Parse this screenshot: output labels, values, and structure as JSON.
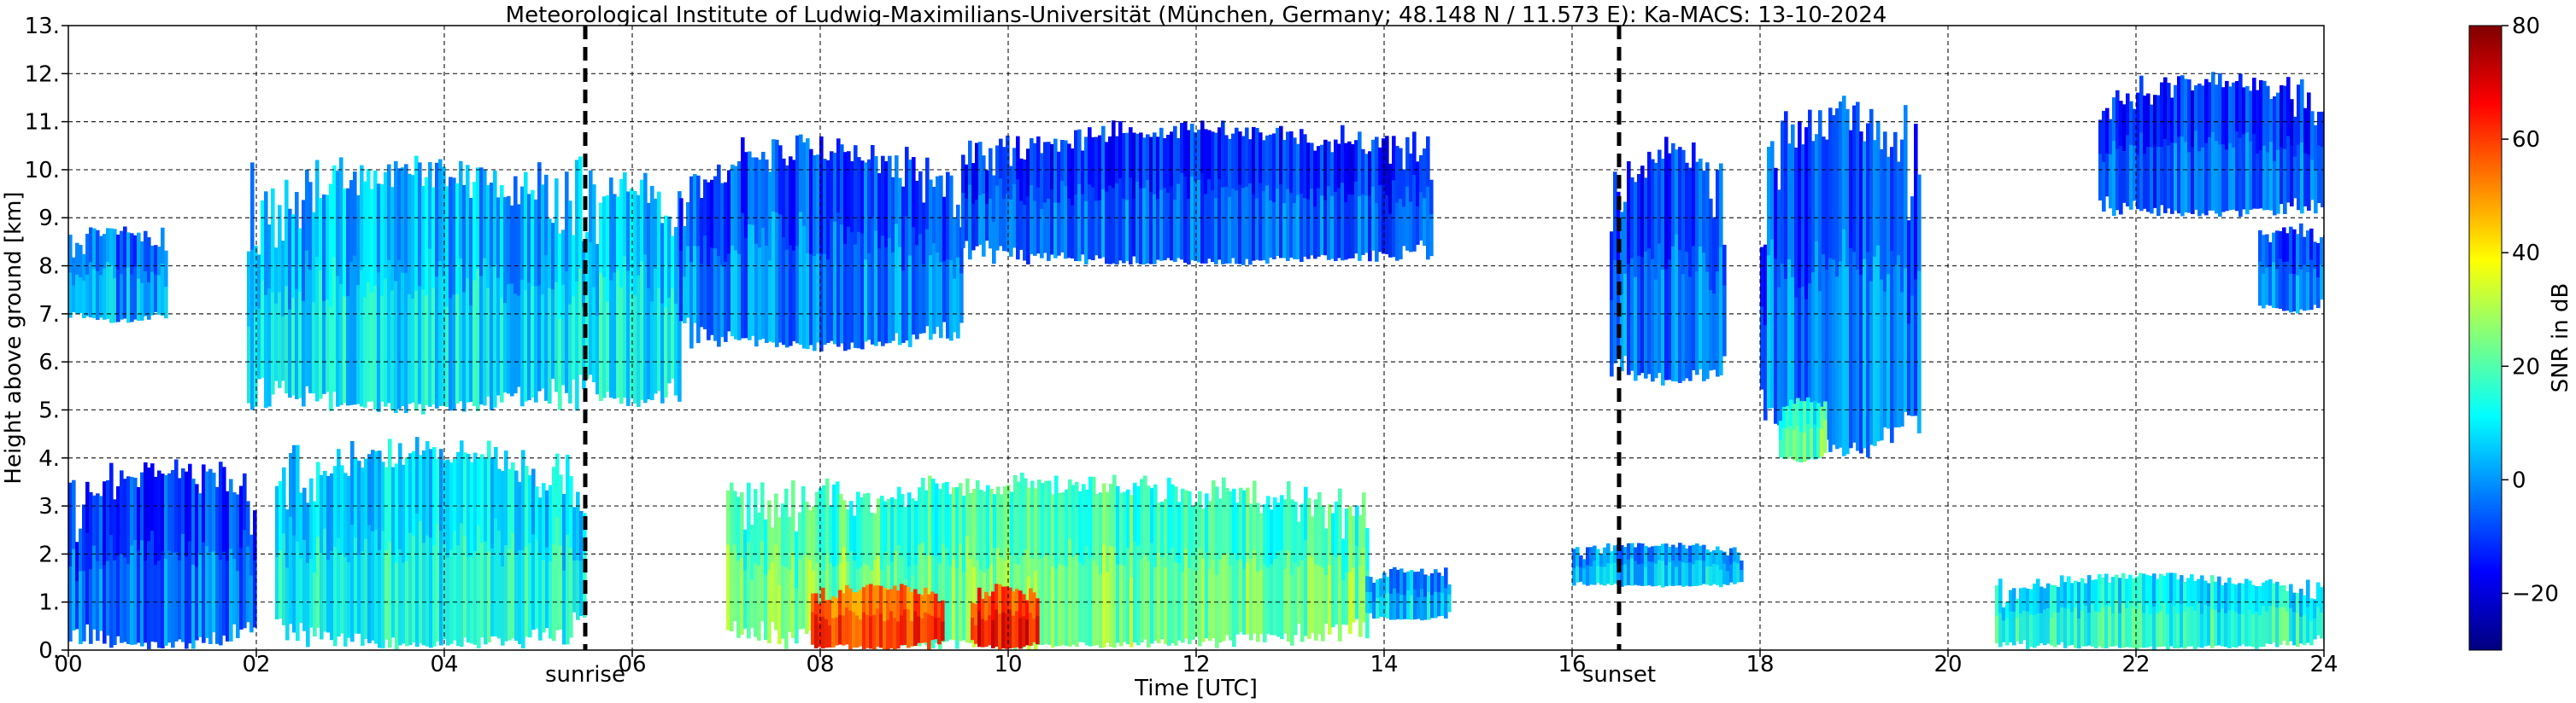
{
  "chart_data": {
    "type": "heatmap",
    "title": "Meteorological Institute of Ludwig-Maximilians-Universität (München, Germany; 48.148 N / 11.573 E):    Ka-MACS: 13-10-2024",
    "xlabel": "Time [UTC]",
    "ylabel": "Height above ground [km]",
    "xlim": [
      0,
      24
    ],
    "ylim": [
      0,
      13
    ],
    "x_ticks": [
      0,
      2,
      4,
      6,
      8,
      10,
      12,
      14,
      16,
      18,
      20,
      22,
      24
    ],
    "x_tick_labels": [
      "00",
      "02",
      "04",
      "06",
      "08",
      "10",
      "12",
      "14",
      "16",
      "18",
      "20",
      "22",
      "24"
    ],
    "y_ticks": [
      0,
      1,
      2,
      3,
      4,
      5,
      6,
      7,
      8,
      9,
      10,
      11,
      12,
      13
    ],
    "y_tick_labels": [
      "0.",
      "1.",
      "2.",
      "3.",
      "4.",
      "5.",
      "6.",
      "7.",
      "8.",
      "9.",
      "10.",
      "11.",
      "12.",
      "13."
    ],
    "grid": true,
    "colorbar": {
      "label": "SNR in dB",
      "range": [
        -30,
        80
      ],
      "ticks": [
        -20,
        0,
        20,
        40,
        60,
        80
      ],
      "tick_labels": [
        "−20",
        "0",
        "20",
        "40",
        "60",
        "80"
      ],
      "colormap": [
        "#00007f",
        "#0000ff",
        "#007fff",
        "#00ffff",
        "#7fff7f",
        "#ffff00",
        "#ff7f00",
        "#ff0000",
        "#7f0000"
      ]
    },
    "events": [
      {
        "label": "sunrise",
        "time": 5.5
      },
      {
        "label": "sunset",
        "time": 16.5
      }
    ],
    "echo_regions": [
      {
        "t0": 0.0,
        "t1": 1.05,
        "h0": 6.8,
        "h1": 9.0,
        "snr_mean": -5
      },
      {
        "t0": 1.9,
        "t1": 5.5,
        "h0": 4.9,
        "h1": 10.6,
        "snr_mean": 3
      },
      {
        "t0": 5.5,
        "t1": 6.5,
        "h0": 5.0,
        "h1": 10.3,
        "snr_mean": 5
      },
      {
        "t0": 6.5,
        "t1": 9.5,
        "h0": 6.2,
        "h1": 11.0,
        "snr_mean": -8
      },
      {
        "t0": 9.5,
        "t1": 14.5,
        "h0": 8.0,
        "h1": 11.2,
        "snr_mean": -12
      },
      {
        "t0": 0.0,
        "t1": 2.0,
        "h0": 0.0,
        "h1": 4.2,
        "snr_mean": -10
      },
      {
        "t0": 2.2,
        "t1": 5.5,
        "h0": 0.0,
        "h1": 4.7,
        "snr_mean": 8
      },
      {
        "t0": 7.0,
        "t1": 13.8,
        "h0": 0.0,
        "h1": 3.9,
        "snr_mean": 18
      },
      {
        "t0": 7.9,
        "t1": 9.3,
        "h0": 0.0,
        "h1": 1.5,
        "snr_mean": 55
      },
      {
        "t0": 9.6,
        "t1": 10.3,
        "h0": 0.0,
        "h1": 1.5,
        "snr_mean": 58
      },
      {
        "t0": 13.8,
        "t1": 14.7,
        "h0": 0.6,
        "h1": 1.8,
        "snr_mean": 0
      },
      {
        "t0": 16.0,
        "t1": 17.8,
        "h0": 1.3,
        "h1": 2.3,
        "snr_mean": 0
      },
      {
        "t0": 16.4,
        "t1": 17.6,
        "h0": 5.5,
        "h1": 11.0,
        "snr_mean": -10
      },
      {
        "t0": 18.0,
        "t1": 19.7,
        "h0": 4.0,
        "h1": 12.0,
        "snr_mean": -8
      },
      {
        "t0": 18.2,
        "t1": 18.7,
        "h0": 3.9,
        "h1": 5.4,
        "snr_mean": 15
      },
      {
        "t0": 20.5,
        "t1": 24.0,
        "h0": 0.0,
        "h1": 1.7,
        "snr_mean": 10
      },
      {
        "t0": 21.6,
        "t1": 24.0,
        "h0": 9.0,
        "h1": 12.2,
        "snr_mean": -12
      },
      {
        "t0": 23.3,
        "t1": 24.0,
        "h0": 7.0,
        "h1": 9.0,
        "snr_mean": -8
      }
    ]
  }
}
